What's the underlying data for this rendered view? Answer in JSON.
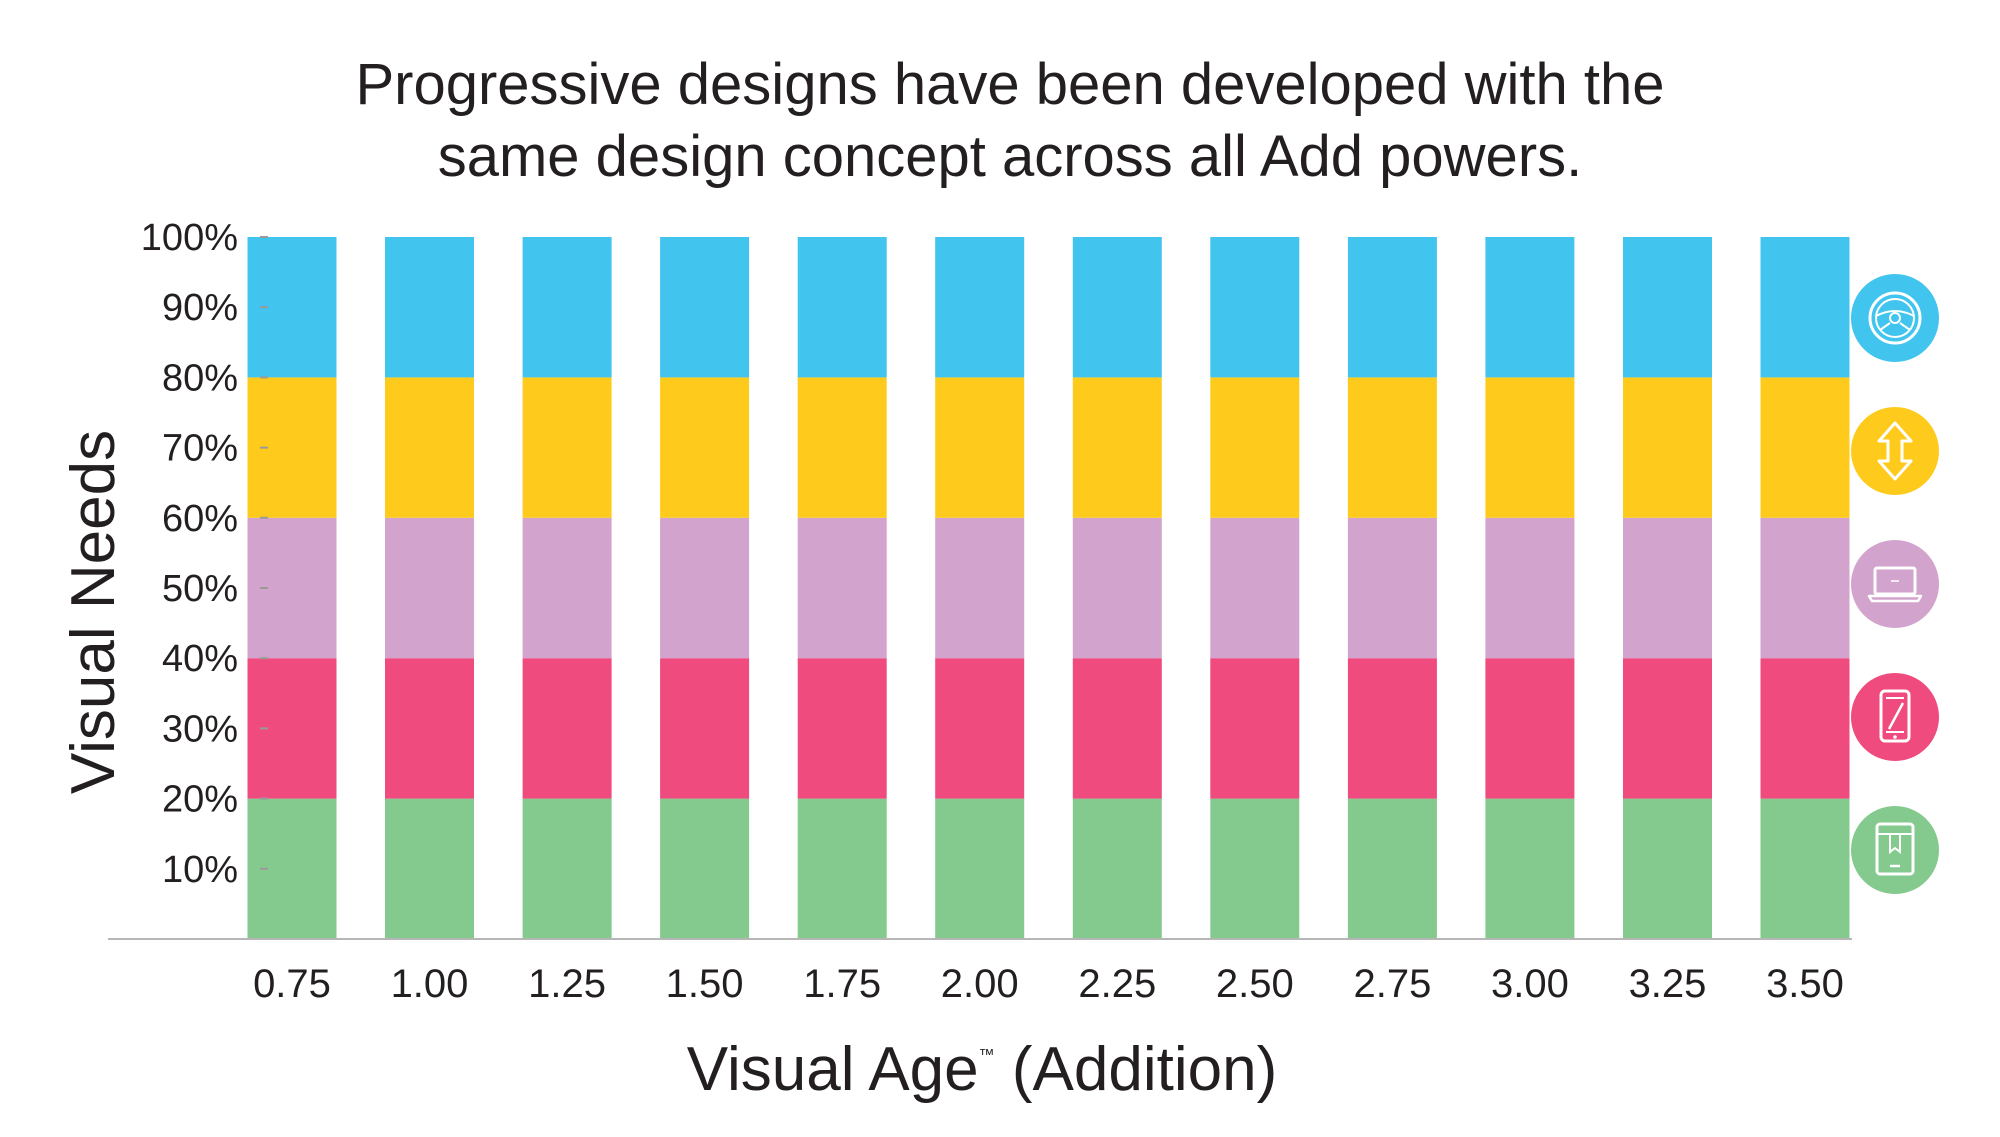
{
  "chart_data": {
    "type": "bar",
    "stacked": true,
    "title": [
      "Progressive designs have been developed with the",
      "same design concept across all Add powers."
    ],
    "xlabel": "Visual Age",
    "xlabel_mark": "™",
    "xlabel_suffix": " (Addition)",
    "ylabel": "Visual Needs",
    "categories": [
      "0.75",
      "1.00",
      "1.25",
      "1.50",
      "1.75",
      "2.00",
      "2.25",
      "2.50",
      "2.75",
      "3.00",
      "3.25",
      "3.50"
    ],
    "y_ticks": [
      "10%",
      "20%",
      "30%",
      "40%",
      "50%",
      "60%",
      "70%",
      "80%",
      "90%",
      "100%"
    ],
    "ylim": [
      0,
      100
    ],
    "grid": false,
    "legend": "right (icons)",
    "series": [
      {
        "values": [
          20,
          20,
          20,
          20,
          20,
          20,
          20,
          20,
          20,
          20,
          20,
          20
        ],
        "color": "#84c98d",
        "icon": "book-icon"
      },
      {
        "values": [
          20,
          20,
          20,
          20,
          20,
          20,
          20,
          20,
          20,
          20,
          20,
          20
        ],
        "color": "#ef4b7e",
        "icon": "smartphone-icon"
      },
      {
        "values": [
          20,
          20,
          20,
          20,
          20,
          20,
          20,
          20,
          20,
          20,
          20,
          20
        ],
        "color": "#d2a3cc",
        "icon": "laptop-icon"
      },
      {
        "values": [
          20,
          20,
          20,
          20,
          20,
          20,
          20,
          20,
          20,
          20,
          20,
          20
        ],
        "color": "#fecb1c",
        "icon": "vertical-arrows-icon"
      },
      {
        "values": [
          20,
          20,
          20,
          20,
          20,
          20,
          20,
          20,
          20,
          20,
          20,
          20
        ],
        "color": "#41c4ee",
        "icon": "steering-wheel-icon"
      }
    ]
  }
}
